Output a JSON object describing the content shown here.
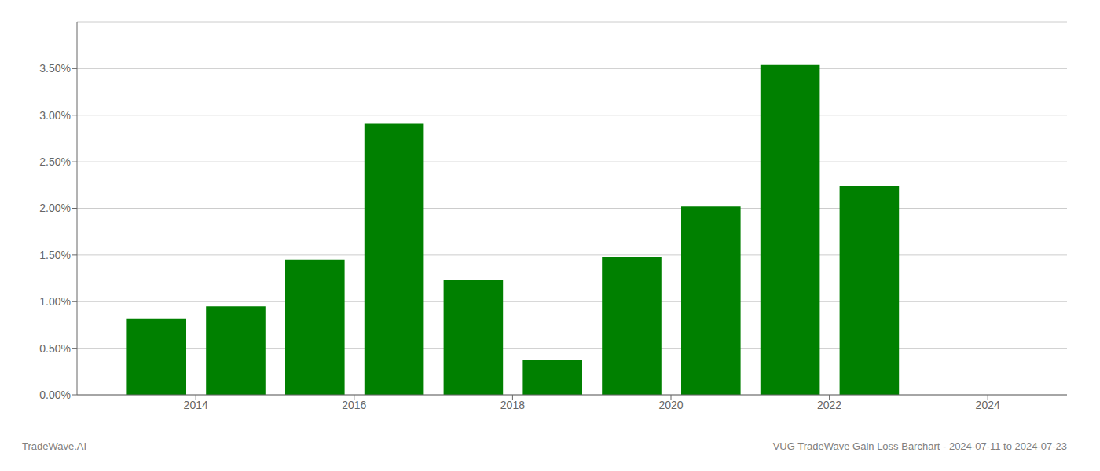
{
  "chart_data": {
    "type": "bar",
    "x": [
      2013.5,
      2014.5,
      2015.5,
      2016.5,
      2017.5,
      2018.5,
      2019.5,
      2020.5,
      2021.5,
      2022.5
    ],
    "values": [
      0.0082,
      0.0095,
      0.0145,
      0.0291,
      0.0123,
      0.0038,
      0.0148,
      0.0202,
      0.0354,
      0.0224
    ],
    "color": "#008000",
    "xlim": [
      2012.5,
      2025.0
    ],
    "ylim": [
      0.0,
      0.04
    ],
    "xticks": [
      2014,
      2016,
      2018,
      2020,
      2022,
      2024
    ],
    "yticks": [
      {
        "value": 0.0,
        "label": "0.00%"
      },
      {
        "value": 0.005,
        "label": "0.50%"
      },
      {
        "value": 0.01,
        "label": "1.00%"
      },
      {
        "value": 0.015,
        "label": "1.50%"
      },
      {
        "value": 0.02,
        "label": "2.00%"
      },
      {
        "value": 0.025,
        "label": "2.50%"
      },
      {
        "value": 0.03,
        "label": "3.00%"
      },
      {
        "value": 0.035,
        "label": "3.50%"
      }
    ],
    "grid": true,
    "annotations": [
      "TradeWave.AI",
      "VUG TradeWave Gain Loss Barchart - 2024-07-11 to 2024-07-23"
    ]
  }
}
